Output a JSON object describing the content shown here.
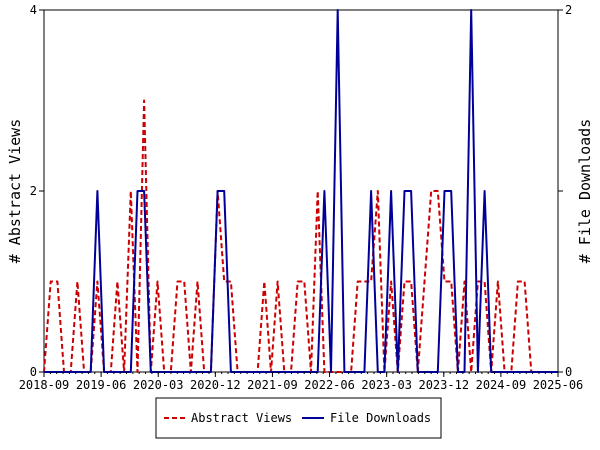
{
  "chart_data": {
    "type": "line",
    "title": "",
    "xlabel": "",
    "ylabel": "# Abstract Views",
    "ylabel_right": "# File Downloads",
    "x_tick_labels": [
      "2018-09",
      "2019-06",
      "2020-03",
      "2020-12",
      "2021-09",
      "2022-06",
      "2023-03",
      "2023-12",
      "2024-09",
      "2025-06"
    ],
    "x_start": "2018-09",
    "x_end": "2025-06",
    "ylim_left": [
      0,
      4
    ],
    "ylim_right": [
      0,
      2
    ],
    "yticks_left": [
      "0",
      "2",
      "4"
    ],
    "yticks_right": [
      "0",
      "1",
      "2"
    ],
    "legend_position": "bottom-center",
    "grid": false,
    "series": [
      {
        "name": "Abstract Views",
        "axis": "left",
        "color": "#cc0000",
        "style": "dashed",
        "values": [
          0,
          1,
          1,
          0,
          0,
          1,
          0,
          0,
          1,
          0,
          0,
          1,
          0,
          2,
          0,
          3,
          0,
          1,
          0,
          0,
          1,
          1,
          0,
          1,
          0,
          0,
          2,
          1,
          1,
          0,
          0,
          0,
          0,
          1,
          0,
          1,
          0,
          0,
          1,
          1,
          0,
          2,
          0,
          0,
          0,
          0,
          0,
          1,
          1,
          1,
          2,
          0,
          1,
          0,
          1,
          1,
          0,
          1,
          2,
          2,
          1,
          1,
          0,
          1,
          0,
          1,
          1,
          0,
          1,
          0,
          0,
          1,
          1,
          0,
          0,
          0,
          0,
          0
        ]
      },
      {
        "name": "File Downloads",
        "axis": "right",
        "color": "#000099",
        "style": "solid",
        "values": [
          0,
          0,
          0,
          0,
          0,
          0,
          0,
          0,
          1,
          0,
          0,
          0,
          0,
          0,
          1,
          1,
          0,
          0,
          0,
          0,
          0,
          0,
          0,
          0,
          0,
          0,
          1,
          1,
          0,
          0,
          0,
          0,
          0,
          0,
          0,
          0,
          0,
          0,
          0,
          0,
          0,
          0,
          1,
          0,
          2,
          0,
          0,
          0,
          0,
          1,
          0,
          0,
          1,
          0,
          1,
          1,
          0,
          0,
          0,
          0,
          1,
          1,
          0,
          0,
          2,
          0,
          1,
          0,
          0,
          0,
          0,
          0,
          0,
          0,
          0,
          0,
          0,
          0
        ]
      }
    ]
  }
}
